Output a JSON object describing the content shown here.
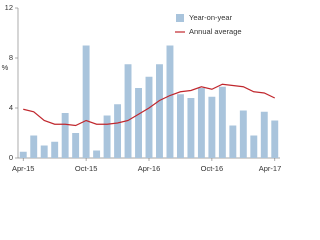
{
  "chart_data": {
    "type": "bar+line",
    "y_label": "%",
    "categories": [
      "Apr-15",
      null,
      null,
      null,
      null,
      null,
      "Oct-15",
      null,
      null,
      null,
      null,
      null,
      "Apr-16",
      null,
      null,
      null,
      null,
      null,
      "Oct-16",
      null,
      null,
      null,
      null,
      null,
      "Apr-17"
    ],
    "series": [
      {
        "name": "Year-on-year",
        "type": "bar",
        "color": "#a9c4dc",
        "values": [
          0.5,
          1.8,
          1.0,
          1.3,
          3.6,
          2.0,
          9.0,
          0.6,
          3.4,
          4.3,
          7.5,
          5.6,
          6.5,
          7.5,
          9.0,
          5.1,
          4.8,
          5.6,
          4.9,
          5.7,
          2.6,
          3.8,
          1.8,
          3.7,
          3.0
        ]
      },
      {
        "name": "Annual average",
        "type": "line",
        "color": "#c0272d",
        "values": [
          3.9,
          3.7,
          3.0,
          2.7,
          2.7,
          2.6,
          3.0,
          2.7,
          2.7,
          2.8,
          3.0,
          3.5,
          4.0,
          4.6,
          5.0,
          5.3,
          5.4,
          5.7,
          5.5,
          5.9,
          5.8,
          5.7,
          5.3,
          5.2,
          4.8
        ]
      }
    ],
    "ylim": [
      0,
      12
    ],
    "yticks": [
      0,
      4,
      8,
      12
    ],
    "legend": "top-right"
  }
}
